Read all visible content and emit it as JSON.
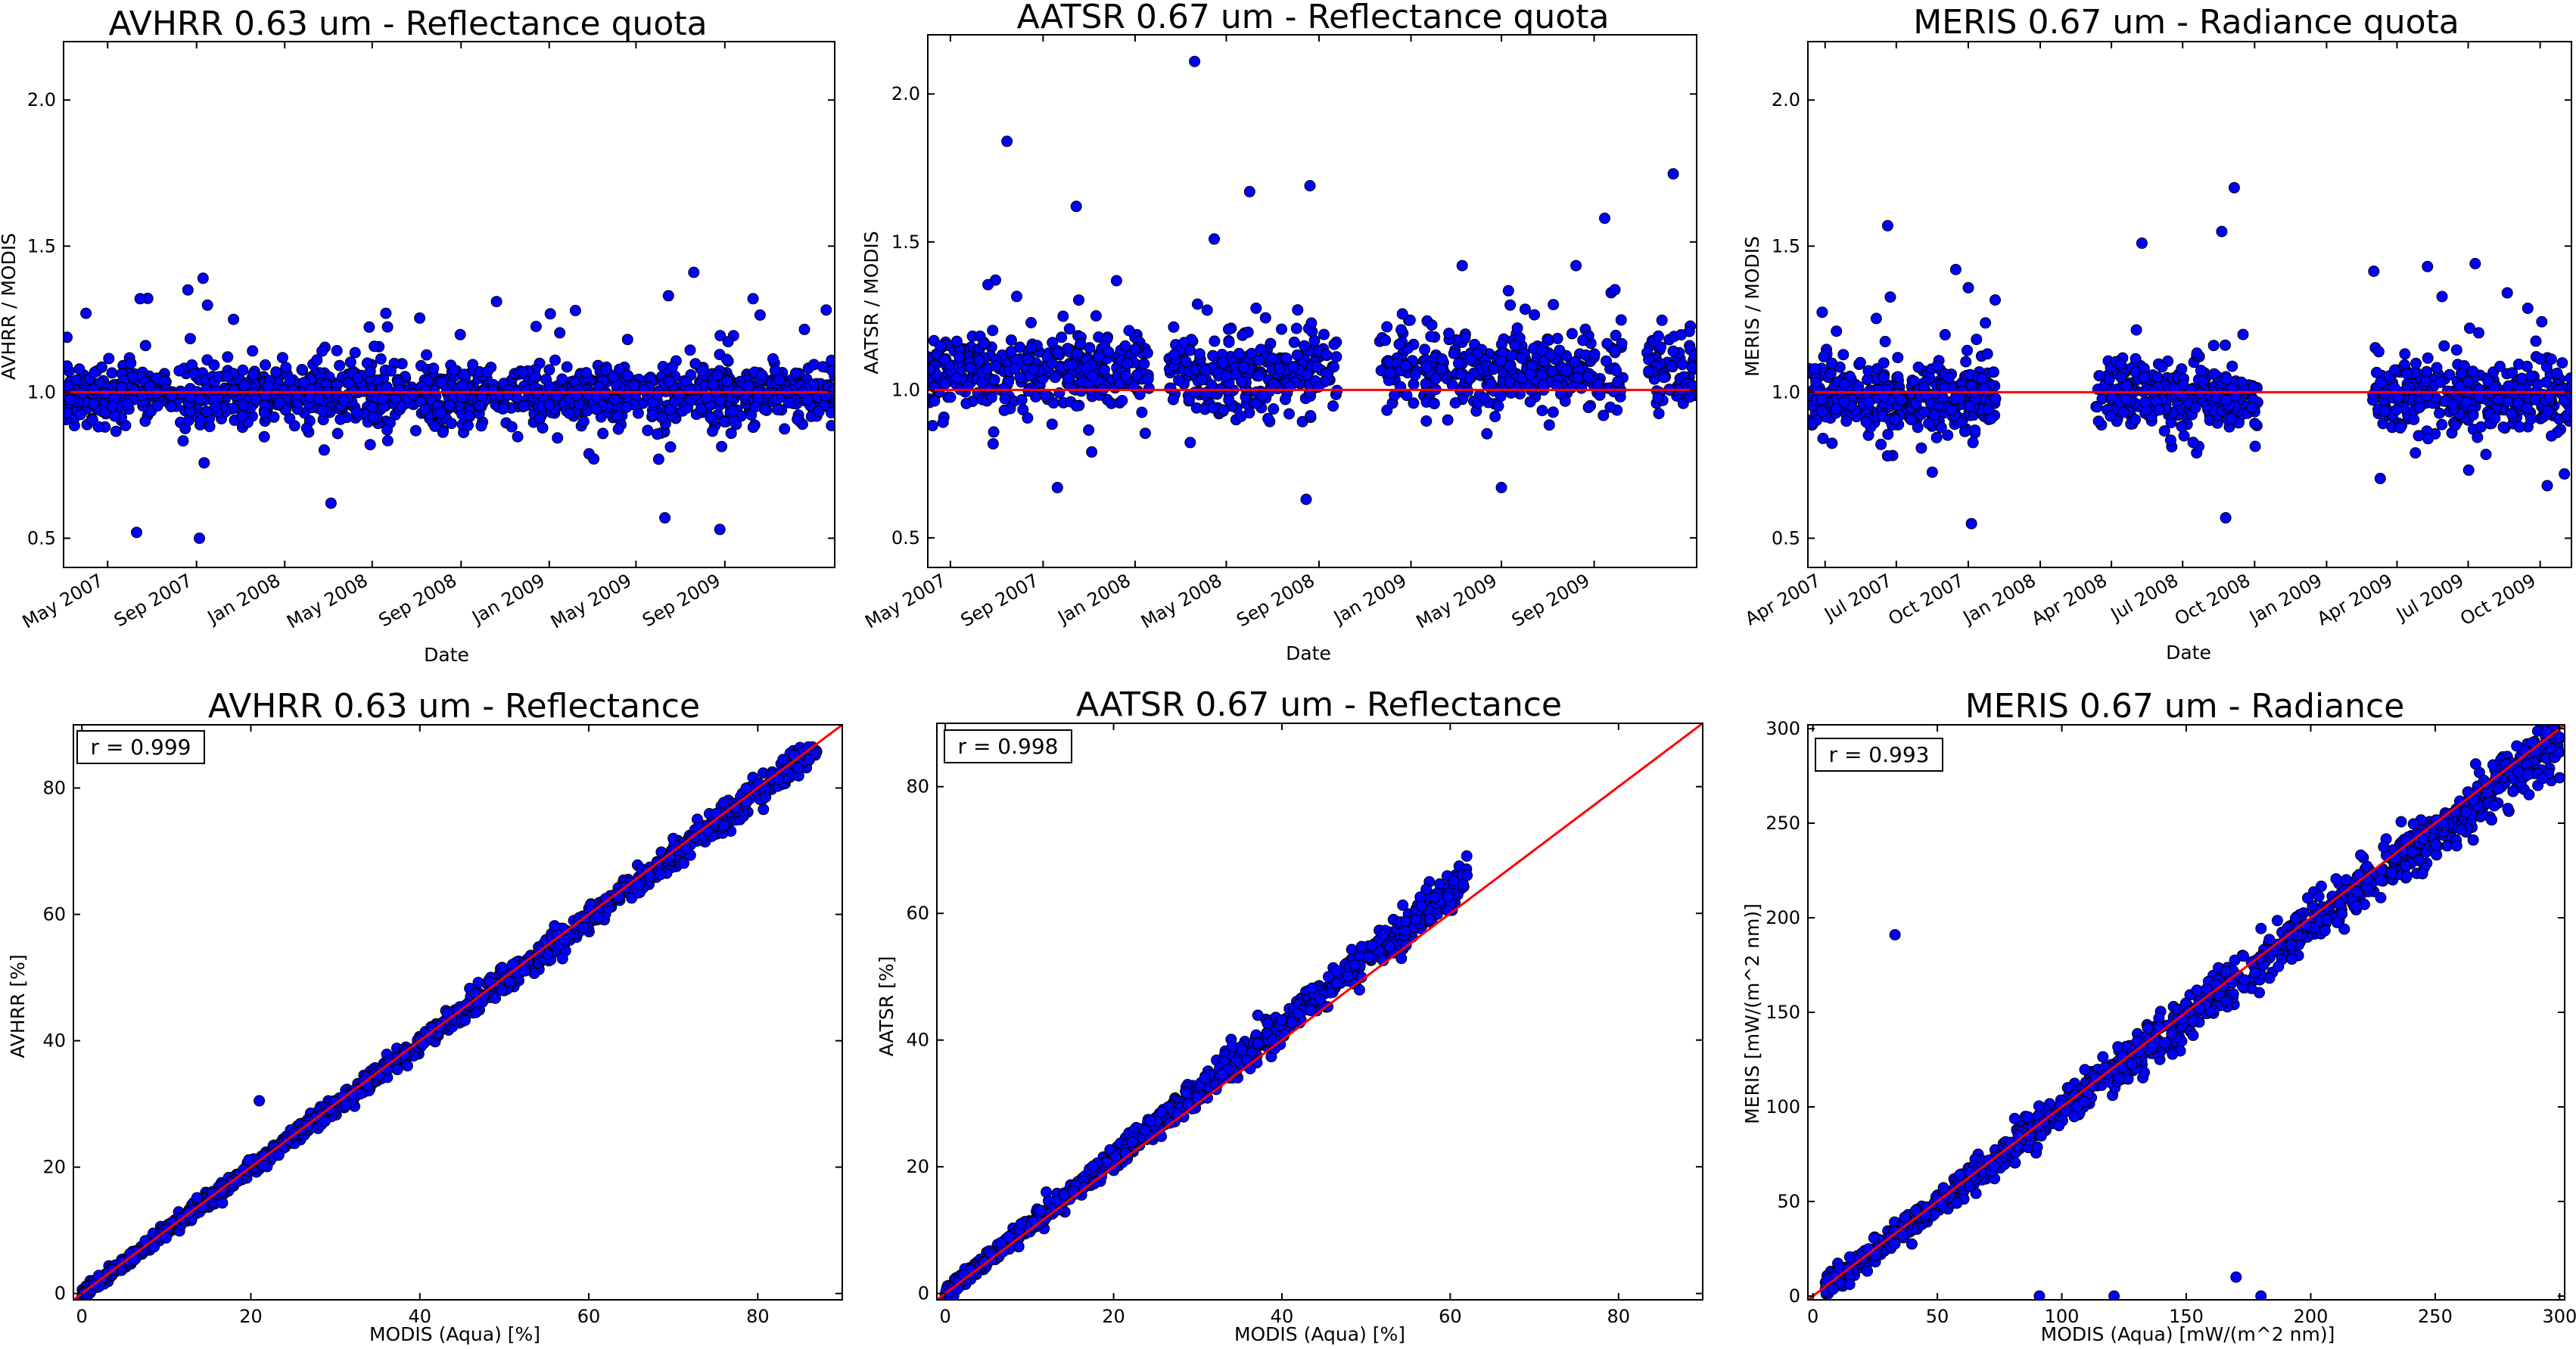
{
  "figure": {
    "background": "#ffffff",
    "marker_color": "#0000ff",
    "marker_edge": "#000000",
    "reference_line_color": "#ff0000"
  },
  "chart_data": [
    {
      "id": "avhrr-quota",
      "type": "scatter",
      "title": "AVHRR 0.63 um - Reflectance quota",
      "xlabel": "Date",
      "ylabel": "AVHRR / MODIS",
      "x_is_time": true,
      "xlim": [
        "2007-03-01",
        "2010-01-31"
      ],
      "ylim": [
        0.4,
        2.2
      ],
      "x_ticks": [
        {
          "t": "2007-05-01",
          "label": "May 2007"
        },
        {
          "t": "2007-09-01",
          "label": "Sep 2007"
        },
        {
          "t": "2008-01-01",
          "label": "Jan 2008"
        },
        {
          "t": "2008-05-01",
          "label": "May 2008"
        },
        {
          "t": "2008-09-01",
          "label": "Sep 2008"
        },
        {
          "t": "2009-01-01",
          "label": "Jan 2009"
        },
        {
          "t": "2009-05-01",
          "label": "May 2009"
        },
        {
          "t": "2009-09-01",
          "label": "Sep 2009"
        }
      ],
      "y_ticks": [
        {
          "v": 0.5,
          "label": "0.5"
        },
        {
          "v": 1.0,
          "label": "1.0"
        },
        {
          "v": 1.5,
          "label": "1.5"
        },
        {
          "v": 2.0,
          "label": "2.0"
        }
      ],
      "reference_line": {
        "kind": "horizontal",
        "value": 1.0
      },
      "cluster": {
        "periods": [
          [
            "2007-03-01",
            "2010-01-31"
          ]
        ],
        "center": 0.99,
        "spread": 0.05,
        "count": 1400
      },
      "outliers": [
        {
          "t": "2007-06-10",
          "y": 0.52
        },
        {
          "t": "2007-09-05",
          "y": 0.5
        },
        {
          "t": "2007-06-15",
          "y": 1.32
        },
        {
          "t": "2007-08-20",
          "y": 1.35
        },
        {
          "t": "2007-09-10",
          "y": 1.39
        },
        {
          "t": "2008-03-05",
          "y": 0.62
        },
        {
          "t": "2008-05-20",
          "y": 1.27
        },
        {
          "t": "2008-10-20",
          "y": 1.31
        },
        {
          "t": "2009-06-15",
          "y": 1.33
        },
        {
          "t": "2009-07-20",
          "y": 1.41
        },
        {
          "t": "2009-06-10",
          "y": 0.57
        },
        {
          "t": "2009-08-25",
          "y": 0.53
        },
        {
          "t": "2009-10-10",
          "y": 1.32
        },
        {
          "t": "2007-04-01",
          "y": 1.27
        }
      ]
    },
    {
      "id": "aatsr-quota",
      "type": "scatter",
      "title": "AATSR 0.67 um - Reflectance quota",
      "xlabel": "Date",
      "ylabel": "AATSR / MODIS",
      "x_is_time": true,
      "xlim": [
        "2007-04-01",
        "2010-01-15"
      ],
      "ylim": [
        0.4,
        2.2
      ],
      "x_ticks": [
        {
          "t": "2007-05-01",
          "label": "May 2007"
        },
        {
          "t": "2007-09-01",
          "label": "Sep 2007"
        },
        {
          "t": "2008-01-01",
          "label": "Jan 2008"
        },
        {
          "t": "2008-05-01",
          "label": "May 2008"
        },
        {
          "t": "2008-09-01",
          "label": "Sep 2008"
        },
        {
          "t": "2009-01-01",
          "label": "Jan 2009"
        },
        {
          "t": "2009-05-01",
          "label": "May 2009"
        },
        {
          "t": "2009-09-01",
          "label": "Sep 2009"
        }
      ],
      "y_ticks": [
        {
          "v": 0.5,
          "label": "0.5"
        },
        {
          "v": 1.0,
          "label": "1.0"
        },
        {
          "v": 1.5,
          "label": "1.5"
        },
        {
          "v": 2.0,
          "label": "2.0"
        }
      ],
      "reference_line": {
        "kind": "horizontal",
        "value": 1.0
      },
      "cluster": {
        "periods": [
          [
            "2007-04-01",
            "2008-01-20"
          ],
          [
            "2008-02-15",
            "2008-09-25"
          ],
          [
            "2008-11-20",
            "2009-10-10"
          ],
          [
            "2009-11-10",
            "2010-01-15"
          ]
        ],
        "center": 1.06,
        "spread": 0.07,
        "count": 1050
      },
      "outliers": [
        {
          "t": "2007-07-15",
          "y": 1.84
        },
        {
          "t": "2007-10-15",
          "y": 1.62
        },
        {
          "t": "2008-03-20",
          "y": 2.11
        },
        {
          "t": "2008-06-01",
          "y": 1.67
        },
        {
          "t": "2008-08-20",
          "y": 1.69
        },
        {
          "t": "2008-08-15",
          "y": 0.63
        },
        {
          "t": "2009-05-01",
          "y": 0.67
        },
        {
          "t": "2009-09-15",
          "y": 1.58
        },
        {
          "t": "2009-12-15",
          "y": 1.73
        },
        {
          "t": "2008-04-15",
          "y": 1.51
        },
        {
          "t": "2009-03-10",
          "y": 1.42
        },
        {
          "t": "2007-09-20",
          "y": 0.67
        }
      ]
    },
    {
      "id": "meris-quota",
      "type": "scatter",
      "title": "MERIS 0.67 um - Radiance quota",
      "xlabel": "Date",
      "ylabel": "MERIS / MODIS",
      "x_is_time": true,
      "xlim": [
        "2007-03-10",
        "2009-11-10"
      ],
      "ylim": [
        0.4,
        2.2
      ],
      "x_ticks": [
        {
          "t": "2007-04-01",
          "label": "Apr 2007"
        },
        {
          "t": "2007-07-01",
          "label": "Jul 2007"
        },
        {
          "t": "2007-10-01",
          "label": "Oct 2007"
        },
        {
          "t": "2008-01-01",
          "label": "Jan 2008"
        },
        {
          "t": "2008-04-01",
          "label": "Apr 2008"
        },
        {
          "t": "2008-07-01",
          "label": "Jul 2008"
        },
        {
          "t": "2008-10-01",
          "label": "Oct 2008"
        },
        {
          "t": "2009-01-01",
          "label": "Jan 2009"
        },
        {
          "t": "2009-04-01",
          "label": "Apr 2009"
        },
        {
          "t": "2009-07-01",
          "label": "Jul 2009"
        },
        {
          "t": "2009-10-01",
          "label": "Oct 2009"
        }
      ],
      "y_ticks": [
        {
          "v": 0.5,
          "label": "0.5"
        },
        {
          "v": 1.0,
          "label": "1.0"
        },
        {
          "v": 1.5,
          "label": "1.5"
        },
        {
          "v": 2.0,
          "label": "2.0"
        }
      ],
      "reference_line": {
        "kind": "horizontal",
        "value": 1.0
      },
      "cluster": {
        "periods": [
          [
            "2007-03-10",
            "2007-11-05"
          ],
          [
            "2008-03-10",
            "2008-10-05"
          ],
          [
            "2009-03-01",
            "2009-11-10"
          ]
        ],
        "center": 0.98,
        "spread": 0.06,
        "count": 1000
      },
      "outliers": [
        {
          "t": "2007-06-20",
          "y": 1.57
        },
        {
          "t": "2007-09-15",
          "y": 1.42
        },
        {
          "t": "2007-10-05",
          "y": 0.55
        },
        {
          "t": "2008-05-10",
          "y": 1.51
        },
        {
          "t": "2008-08-20",
          "y": 1.55
        },
        {
          "t": "2008-09-05",
          "y": 1.7
        },
        {
          "t": "2008-08-25",
          "y": 0.57
        },
        {
          "t": "2009-05-10",
          "y": 1.43
        },
        {
          "t": "2009-07-10",
          "y": 1.44
        },
        {
          "t": "2009-08-20",
          "y": 1.34
        },
        {
          "t": "2009-10-10",
          "y": 0.68
        },
        {
          "t": "2009-11-01",
          "y": 0.72
        }
      ]
    },
    {
      "id": "avhrr-scatter",
      "type": "scatter",
      "title": "AVHRR 0.63 um - Reflectance",
      "xlabel": "MODIS (Aqua) [%]",
      "ylabel": "AVHRR [%]",
      "xlim": [
        -1,
        90
      ],
      "ylim": [
        -1,
        90
      ],
      "x_ticks": [
        {
          "v": 0,
          "label": "0"
        },
        {
          "v": 20,
          "label": "20"
        },
        {
          "v": 40,
          "label": "40"
        },
        {
          "v": 60,
          "label": "60"
        },
        {
          "v": 80,
          "label": "80"
        }
      ],
      "y_ticks": [
        {
          "v": 0,
          "label": "0"
        },
        {
          "v": 20,
          "label": "20"
        },
        {
          "v": 40,
          "label": "40"
        },
        {
          "v": 60,
          "label": "60"
        },
        {
          "v": 80,
          "label": "80"
        }
      ],
      "reference_line": {
        "kind": "diagonal"
      },
      "correlation_label": "r = 0.999",
      "cluster": {
        "x_range": [
          0,
          87
        ],
        "slope": 0.99,
        "spread": 0.8,
        "count": 1300
      },
      "outliers": [
        {
          "x": 21,
          "y": 30.5
        },
        {
          "x": 86,
          "y": 86.5
        },
        {
          "x": 83,
          "y": 84.5
        }
      ]
    },
    {
      "id": "aatsr-scatter",
      "type": "scatter",
      "title": "AATSR 0.67 um - Reflectance",
      "xlabel": "MODIS (Aqua) [%]",
      "ylabel": "AATSR [%]",
      "xlim": [
        -1,
        90
      ],
      "ylim": [
        -1,
        90
      ],
      "x_ticks": [
        {
          "v": 0,
          "label": "0"
        },
        {
          "v": 20,
          "label": "20"
        },
        {
          "v": 40,
          "label": "40"
        },
        {
          "v": 60,
          "label": "60"
        },
        {
          "v": 80,
          "label": "80"
        }
      ],
      "y_ticks": [
        {
          "v": 0,
          "label": "0"
        },
        {
          "v": 20,
          "label": "20"
        },
        {
          "v": 40,
          "label": "40"
        },
        {
          "v": 60,
          "label": "60"
        },
        {
          "v": 80,
          "label": "80"
        }
      ],
      "reference_line": {
        "kind": "diagonal"
      },
      "correlation_label": "r = 0.998",
      "cluster": {
        "x_range": [
          0,
          62
        ],
        "slope": 1.06,
        "spread": 1.0,
        "count": 1000
      },
      "outliers": [
        {
          "x": 62,
          "y": 66
        },
        {
          "x": 12,
          "y": 16
        },
        {
          "x": 9,
          "y": 11
        }
      ]
    },
    {
      "id": "meris-scatter",
      "type": "scatter",
      "title": "MERIS 0.67 um - Radiance",
      "xlabel": "MODIS (Aqua) [mW/(m^2 nm)]",
      "ylabel": "MERIS [mW/(m^2 nm)]",
      "xlim": [
        -2,
        302
      ],
      "ylim": [
        -2,
        302
      ],
      "x_ticks": [
        {
          "v": 0,
          "label": "0"
        },
        {
          "v": 50,
          "label": "50"
        },
        {
          "v": 100,
          "label": "100"
        },
        {
          "v": 150,
          "label": "150"
        },
        {
          "v": 200,
          "label": "200"
        },
        {
          "v": 250,
          "label": "250"
        },
        {
          "v": 300,
          "label": "300"
        }
      ],
      "y_ticks": [
        {
          "v": 0,
          "label": "0"
        },
        {
          "v": 50,
          "label": "50"
        },
        {
          "v": 100,
          "label": "100"
        },
        {
          "v": 150,
          "label": "150"
        },
        {
          "v": 200,
          "label": "200"
        },
        {
          "v": 250,
          "label": "250"
        },
        {
          "v": 300,
          "label": "300"
        }
      ],
      "reference_line": {
        "kind": "diagonal"
      },
      "correlation_label": "r = 0.993",
      "cluster": {
        "x_range": [
          5,
          300
        ],
        "slope": 0.98,
        "spread": 5.0,
        "count": 1300
      },
      "outliers": [
        {
          "x": 33,
          "y": 191
        },
        {
          "x": 91,
          "y": 0
        },
        {
          "x": 121,
          "y": 0
        },
        {
          "x": 180,
          "y": 0
        },
        {
          "x": 170,
          "y": 10
        },
        {
          "x": 300,
          "y": 274
        }
      ]
    }
  ]
}
